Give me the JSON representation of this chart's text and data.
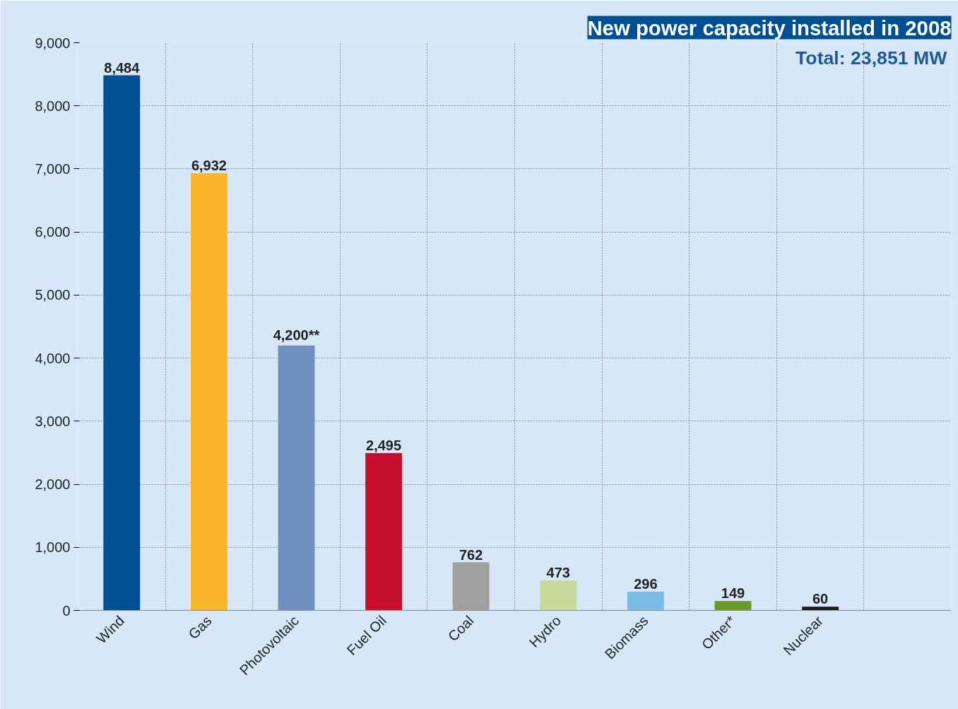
{
  "chart_data": {
    "type": "bar",
    "title": "New power capacity installed in 2008",
    "annotations": [
      "Total: 23,851 MW"
    ],
    "categories": [
      "Wind",
      "Gas",
      "Photovoltaic",
      "Fuel Oil",
      "Coal",
      "Hydro",
      "Biomass",
      "Other*",
      "Nuclear"
    ],
    "values": [
      8484,
      6932,
      4200,
      2495,
      762,
      473,
      296,
      149,
      60
    ],
    "colors": [
      "#004f93",
      "#fbb52b",
      "#7090c0",
      "#c8102e",
      "#a0a0a0",
      "#c5d99a",
      "#7bbce6",
      "#6a9a2a",
      "#1a1a1a"
    ],
    "value_labels": [
      "8,484",
      "6,932",
      "4,200**",
      "2,495",
      "762",
      "473",
      "296",
      "149",
      "60"
    ],
    "ylim": [
      0,
      9000
    ],
    "yticks": [
      0,
      {
        "value": 1000,
        "label": "1,000"
      },
      {
        "value": 2000,
        "label": "2,000"
      },
      {
        "value": 3000,
        "label": "3,000"
      },
      {
        "value": 4000,
        "label": "4,000"
      },
      {
        "value": 5000,
        "label": "5,000"
      },
      {
        "value": 6000,
        "label": "6,000"
      },
      {
        "value": 7000,
        "label": "7,000"
      },
      {
        "value": 8000,
        "label": "8,000"
      },
      {
        "value": 9000,
        "label": "9,000"
      }
    ],
    "grid": true
  }
}
